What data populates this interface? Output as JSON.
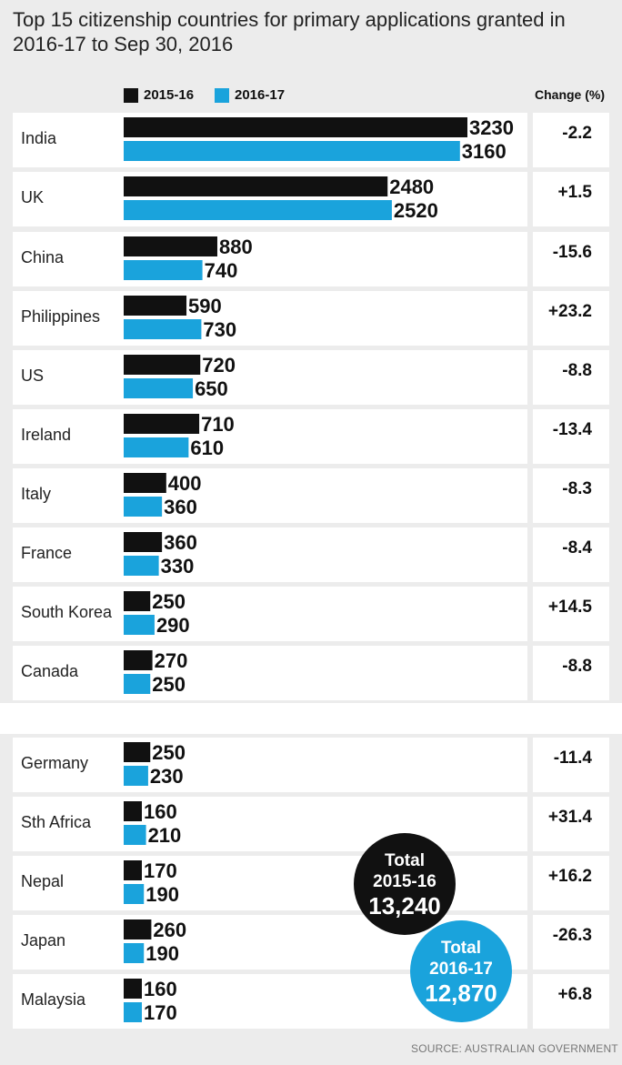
{
  "title": "Top 15 citizenship countries for primary applications granted in 2016-17 to Sep 30, 2016",
  "legend": [
    {
      "label": "2015-16",
      "color": "#111111"
    },
    {
      "label": "2016-17",
      "color": "#1aa3dc"
    }
  ],
  "change_header": "Change (%)",
  "source": "SOURCE: AUSTRALIAN GOVERNMENT",
  "colors": {
    "series_2015": "#111111",
    "series_2016": "#1aa3dc",
    "row_bg": "#ffffff",
    "page_bg": "#ececec"
  },
  "totals": [
    {
      "line1": "Total",
      "line2": "2015-16",
      "value": "13,240",
      "color": "#111111"
    },
    {
      "line1": "Total",
      "line2": "2016-17",
      "value": "12,870",
      "color": "#1aa3dc"
    }
  ],
  "chart_data": {
    "type": "bar",
    "orientation": "horizontal",
    "categories": [
      "India",
      "UK",
      "China",
      "Philippines",
      "US",
      "Ireland",
      "Italy",
      "France",
      "South Korea",
      "Canada",
      "Germany",
      "Sth Africa",
      "Nepal",
      "Japan",
      "Malaysia"
    ],
    "series": [
      {
        "name": "2015-16",
        "values": [
          3230,
          2480,
          880,
          590,
          720,
          710,
          400,
          360,
          250,
          270,
          250,
          160,
          170,
          260,
          160
        ]
      },
      {
        "name": "2016-17",
        "values": [
          3160,
          2520,
          740,
          730,
          650,
          610,
          360,
          330,
          290,
          250,
          230,
          210,
          190,
          190,
          170
        ]
      }
    ],
    "change": [
      "-2.2",
      "+1.5",
      "-15.6",
      "+23.2",
      "-8.8",
      "-13.4",
      "-8.3",
      "-8.4",
      "+14.5",
      "-8.8",
      "-11.4",
      "+31.4",
      "+16.2",
      "-26.3",
      "+6.8"
    ]
  }
}
